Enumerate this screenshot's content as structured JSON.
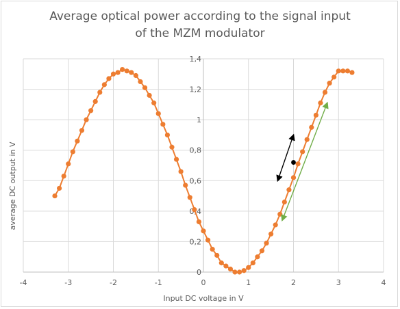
{
  "chart_data": {
    "type": "scatter",
    "title": [
      "Average optical power according to the signal input",
      "of the MZM modulator"
    ],
    "xlabel": "Input DC voltage in V",
    "ylabel": "average DC output in V",
    "xlim": [
      -4,
      4
    ],
    "ylim": [
      0,
      1.4
    ],
    "x_ticks": [
      "-4",
      "-3",
      "-2",
      "-1",
      "0",
      "1",
      "2",
      "3",
      "4"
    ],
    "y_ticks": [
      "0",
      "0,2",
      "0,4",
      "0,6",
      "0,8",
      "1",
      "1,2",
      "1,4"
    ],
    "grid": true,
    "series": [
      {
        "color": "#ed7d31",
        "marker": "circle",
        "line": "straight",
        "x": [
          -3.3,
          -3.2,
          -3.1,
          -3.0,
          -2.9,
          -2.8,
          -2.7,
          -2.6,
          -2.5,
          -2.4,
          -2.3,
          -2.2,
          -2.1,
          -2.0,
          -1.9,
          -1.8,
          -1.7,
          -1.6,
          -1.5,
          -1.4,
          -1.3,
          -1.2,
          -1.1,
          -1.0,
          -0.9,
          -0.8,
          -0.7,
          -0.6,
          -0.5,
          -0.4,
          -0.3,
          -0.2,
          -0.1,
          0.0,
          0.1,
          0.2,
          0.3,
          0.4,
          0.5,
          0.6,
          0.7,
          0.8,
          0.9,
          1.0,
          1.1,
          1.2,
          1.3,
          1.4,
          1.5,
          1.6,
          1.7,
          1.8,
          1.9,
          2.0,
          2.1,
          2.2,
          2.3,
          2.4,
          2.5,
          2.6,
          2.7,
          2.8,
          2.9,
          3.0,
          3.1,
          3.2,
          3.3
        ],
        "y": [
          0.5,
          0.55,
          0.63,
          0.71,
          0.79,
          0.86,
          0.93,
          1.0,
          1.06,
          1.12,
          1.18,
          1.23,
          1.27,
          1.3,
          1.31,
          1.33,
          1.32,
          1.31,
          1.29,
          1.25,
          1.21,
          1.16,
          1.11,
          1.04,
          0.97,
          0.9,
          0.82,
          0.74,
          0.66,
          0.57,
          0.49,
          0.41,
          0.33,
          0.27,
          0.21,
          0.15,
          0.11,
          0.06,
          0.04,
          0.02,
          0.0,
          0.0,
          0.01,
          0.03,
          0.06,
          0.1,
          0.14,
          0.19,
          0.25,
          0.31,
          0.38,
          0.46,
          0.54,
          0.62,
          0.71,
          0.79,
          0.87,
          0.95,
          1.03,
          1.11,
          1.18,
          1.24,
          1.28,
          1.32,
          1.32,
          1.32,
          1.31
        ]
      }
    ],
    "annotations": [
      {
        "type": "point",
        "color": "#000000",
        "x": 2.0,
        "y": 0.72
      },
      {
        "type": "double-arrow",
        "color": "#000000",
        "from": [
          1.65,
          0.6
        ],
        "to": [
          2.0,
          0.9
        ]
      },
      {
        "type": "double-arrow",
        "color": "#70ad47",
        "from": [
          1.75,
          0.34
        ],
        "to": [
          2.75,
          1.11
        ]
      }
    ]
  }
}
